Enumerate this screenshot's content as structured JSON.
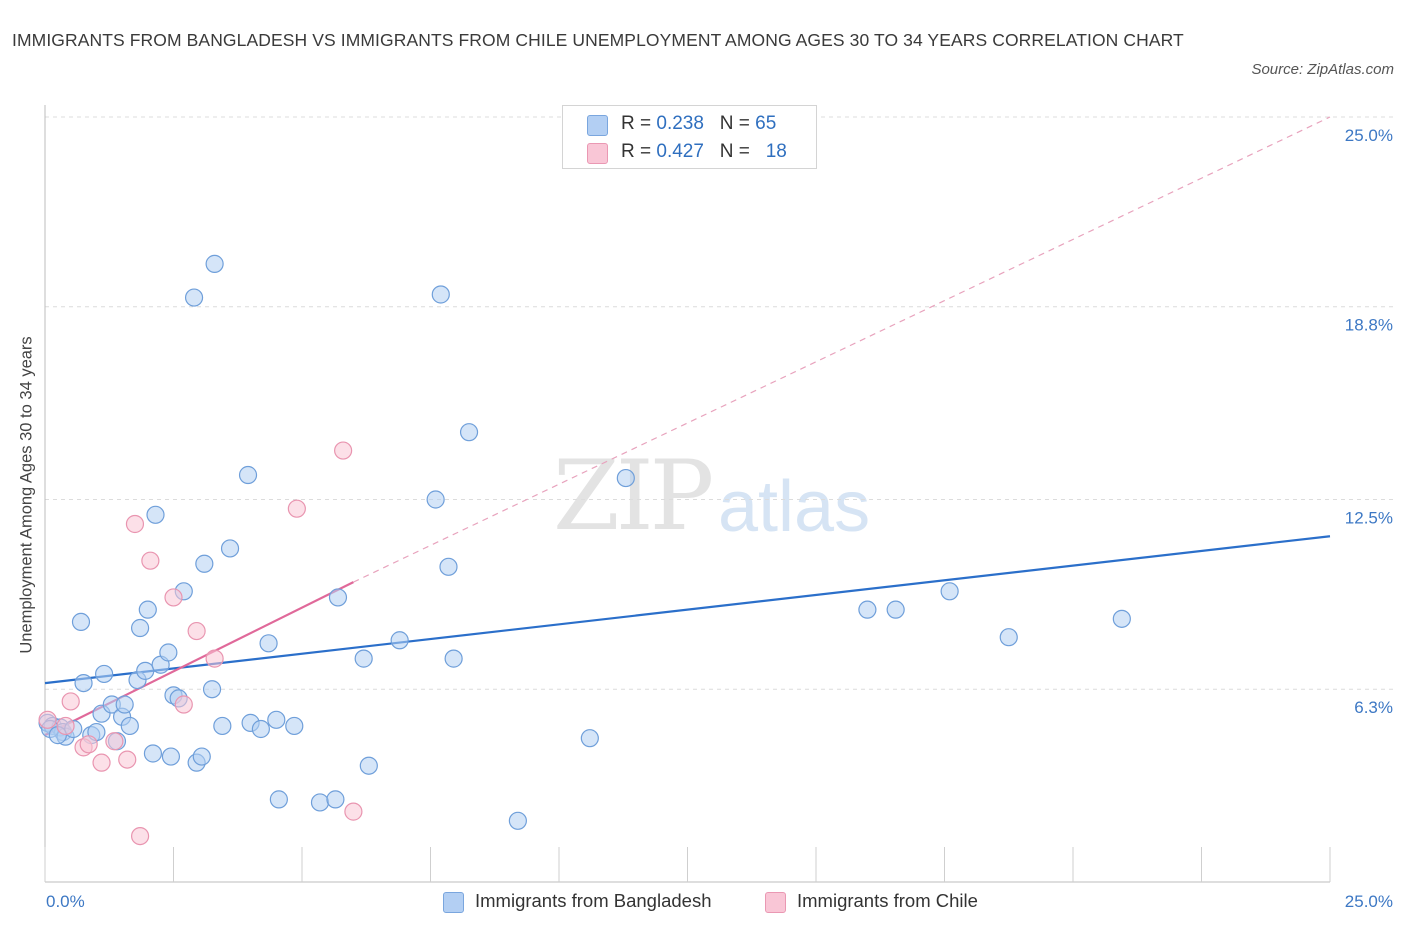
{
  "title": "IMMIGRANTS FROM BANGLADESH VS IMMIGRANTS FROM CHILE UNEMPLOYMENT AMONG AGES 30 TO 34 YEARS CORRELATION CHART",
  "source": "Source: ZipAtlas.com",
  "watermark": {
    "zip": "ZIP",
    "atlas": "atlas"
  },
  "legend_top": [
    {
      "r_label": "R = ",
      "r_value": "0.238",
      "n_label": "N = ",
      "n_value": "65",
      "color": "#b3cff3",
      "stroke": "#7aa6de"
    },
    {
      "r_label": "R = ",
      "r_value": "0.427",
      "n_label": "N = ",
      "n_value": "18",
      "color": "#f9c6d6",
      "stroke": "#ea98b3"
    }
  ],
  "chart_data": {
    "type": "scatter",
    "title": "IMMIGRANTS FROM BANGLADESH VS IMMIGRANTS FROM CHILE UNEMPLOYMENT AMONG AGES 30 TO 34 YEARS CORRELATION CHART",
    "xlabel": "",
    "ylabel": "Unemployment Among Ages 30 to 34 years",
    "xlim": [
      0,
      25
    ],
    "ylim": [
      0,
      25
    ],
    "x_ticks": [
      "0.0%",
      "25.0%"
    ],
    "y_ticks": [
      {
        "value": 6.3,
        "label": "6.3%"
      },
      {
        "value": 12.5,
        "label": "12.5%"
      },
      {
        "value": 18.8,
        "label": "18.8%"
      },
      {
        "value": 25.0,
        "label": "25.0%"
      }
    ],
    "grid": "horizontal dashed",
    "legend_placement": "bottom",
    "series": [
      {
        "name": "Immigrants from Bangladesh",
        "color": "#b3cff3",
        "stroke": "#6f9fda",
        "trend": {
          "x": [
            0,
            25
          ],
          "y": [
            6.5,
            11.3
          ],
          "color": "#2b6fca",
          "style": "solid"
        },
        "points": [
          [
            0.05,
            5.2
          ],
          [
            0.15,
            5.1
          ],
          [
            0.3,
            5.05
          ],
          [
            0.35,
            4.9
          ],
          [
            0.4,
            4.75
          ],
          [
            0.55,
            5.0
          ],
          [
            0.7,
            8.5
          ],
          [
            0.75,
            6.5
          ],
          [
            0.9,
            4.8
          ],
          [
            1.0,
            4.9
          ],
          [
            1.1,
            5.5
          ],
          [
            1.15,
            6.8
          ],
          [
            1.3,
            5.8
          ],
          [
            1.4,
            4.6
          ],
          [
            1.5,
            5.4
          ],
          [
            1.55,
            5.8
          ],
          [
            1.65,
            5.1
          ],
          [
            1.8,
            6.6
          ],
          [
            1.85,
            8.3
          ],
          [
            1.95,
            6.9
          ],
          [
            2.0,
            8.9
          ],
          [
            2.1,
            4.2
          ],
          [
            2.15,
            12.0
          ],
          [
            2.25,
            7.1
          ],
          [
            2.4,
            7.5
          ],
          [
            2.45,
            4.1
          ],
          [
            2.5,
            6.1
          ],
          [
            2.6,
            6.0
          ],
          [
            2.7,
            9.5
          ],
          [
            2.9,
            19.1
          ],
          [
            2.95,
            3.9
          ],
          [
            3.05,
            4.1
          ],
          [
            3.1,
            10.4
          ],
          [
            3.25,
            6.3
          ],
          [
            3.3,
            20.2
          ],
          [
            3.45,
            5.1
          ],
          [
            3.6,
            10.9
          ],
          [
            3.95,
            13.3
          ],
          [
            4.0,
            5.2
          ],
          [
            4.2,
            5.0
          ],
          [
            4.35,
            7.8
          ],
          [
            4.5,
            5.3
          ],
          [
            4.55,
            2.7
          ],
          [
            4.85,
            5.1
          ],
          [
            5.35,
            2.6
          ],
          [
            5.65,
            2.7
          ],
          [
            5.7,
            9.3
          ],
          [
            6.2,
            7.3
          ],
          [
            6.3,
            3.8
          ],
          [
            6.9,
            7.9
          ],
          [
            7.6,
            12.5
          ],
          [
            7.7,
            19.2
          ],
          [
            7.85,
            10.3
          ],
          [
            7.95,
            7.3
          ],
          [
            8.25,
            14.7
          ],
          [
            9.2,
            2.0
          ],
          [
            10.6,
            4.7
          ],
          [
            11.3,
            13.2
          ],
          [
            16.0,
            8.9
          ],
          [
            16.55,
            8.9
          ],
          [
            17.6,
            9.5
          ],
          [
            18.75,
            8.0
          ],
          [
            20.95,
            8.6
          ],
          [
            0.1,
            5.0
          ],
          [
            0.25,
            4.8
          ]
        ]
      },
      {
        "name": "Immigrants from Chile",
        "color": "#f9c6d6",
        "stroke": "#e995b0",
        "trend": {
          "x": [
            0,
            6.0
          ],
          "y": [
            4.8,
            9.8
          ],
          "x_ext": [
            6.0,
            25
          ],
          "y_ext": [
            9.8,
            25
          ],
          "color": "#e0699a",
          "style": "solid+dashed"
        },
        "points": [
          [
            0.05,
            5.3
          ],
          [
            0.4,
            5.1
          ],
          [
            0.5,
            5.9
          ],
          [
            0.75,
            4.4
          ],
          [
            0.85,
            4.5
          ],
          [
            1.1,
            3.9
          ],
          [
            1.35,
            4.6
          ],
          [
            1.6,
            4.0
          ],
          [
            1.75,
            11.7
          ],
          [
            1.85,
            1.5
          ],
          [
            2.05,
            10.5
          ],
          [
            2.5,
            9.3
          ],
          [
            2.7,
            5.8
          ],
          [
            2.95,
            8.2
          ],
          [
            3.3,
            7.3
          ],
          [
            4.9,
            12.2
          ],
          [
            5.8,
            14.1
          ],
          [
            6.0,
            2.3
          ]
        ]
      }
    ]
  }
}
